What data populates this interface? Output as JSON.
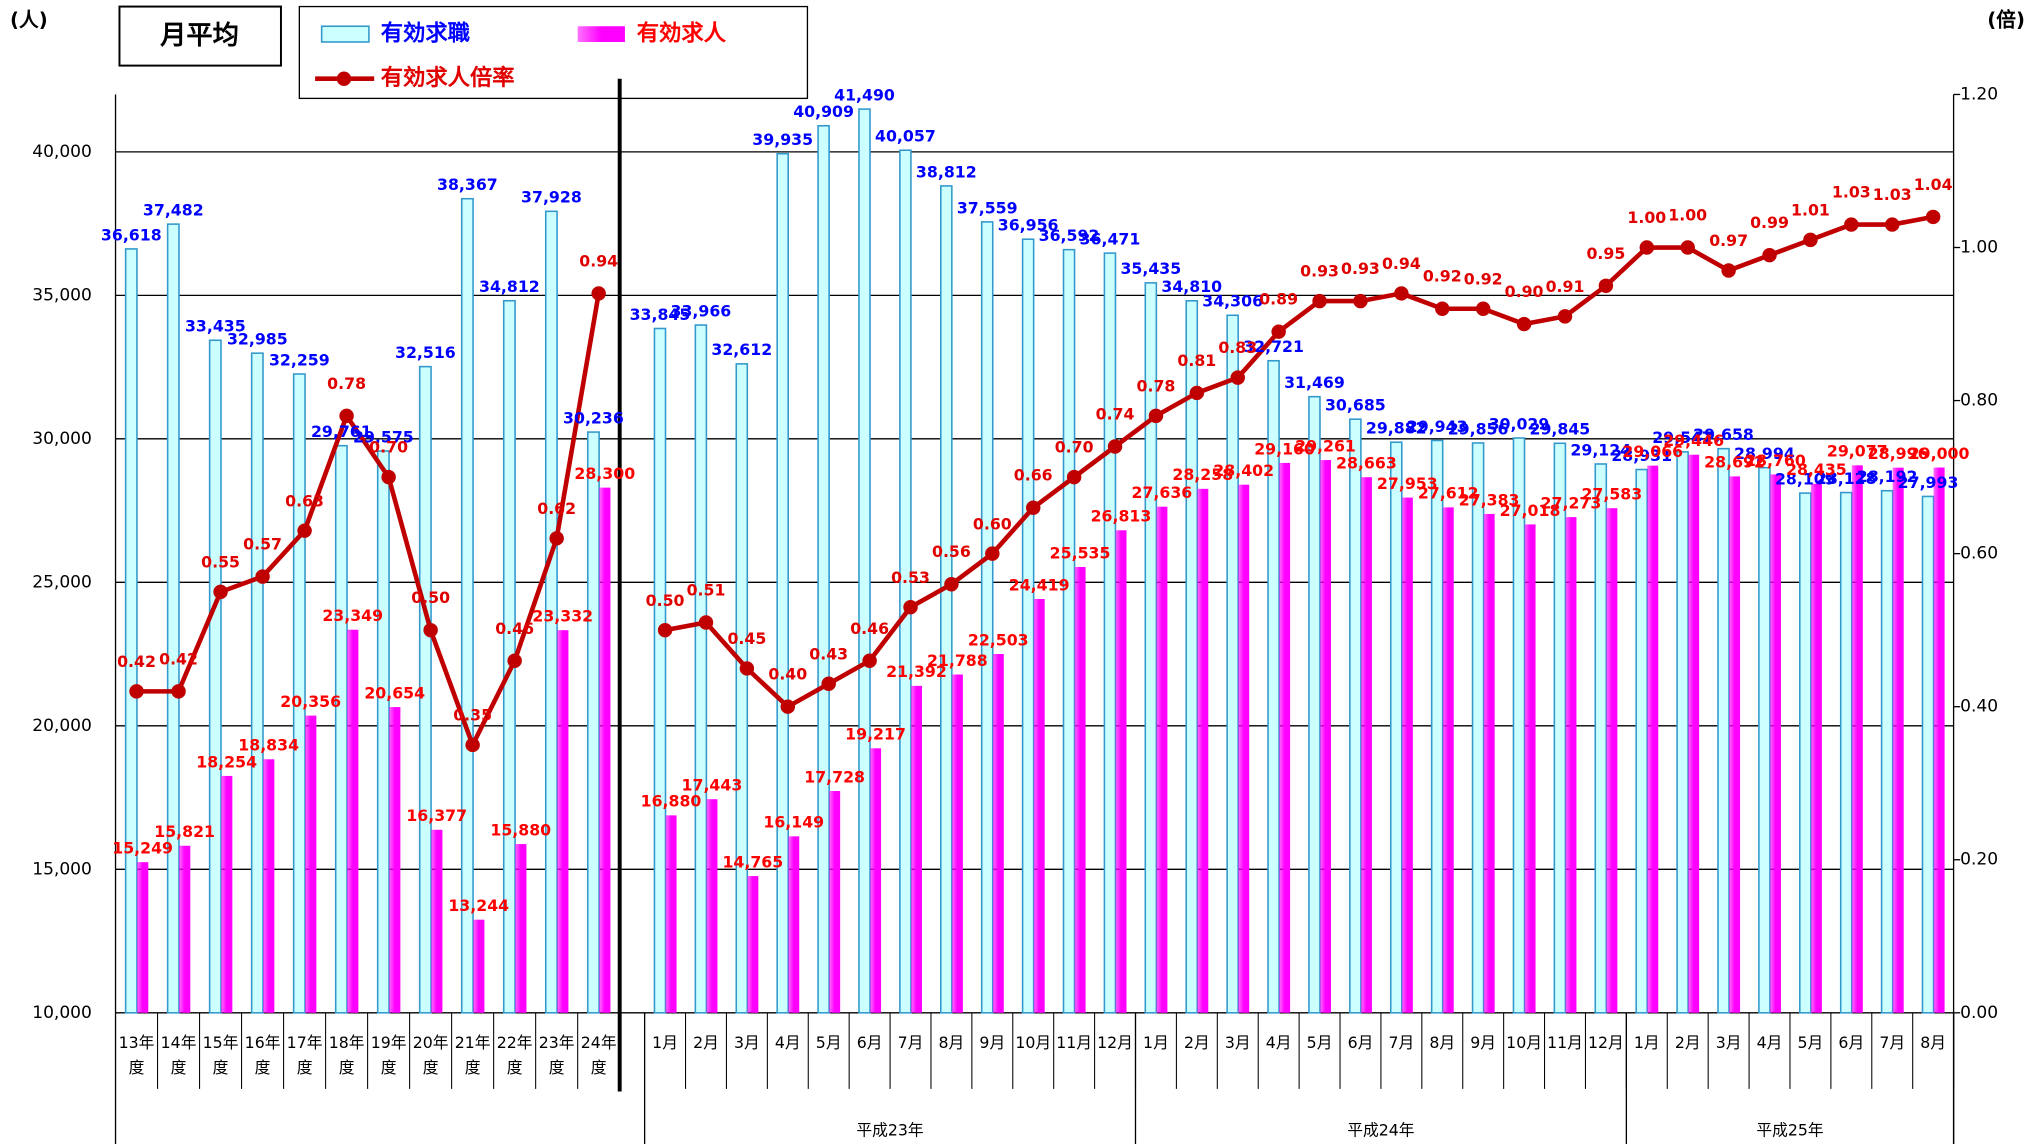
{
  "chart_data": {
    "type": "bar",
    "title": "月平均",
    "y_unit": "(人)",
    "y2_unit": "(倍)",
    "categories": [
      "13年度",
      "14年度",
      "15年度",
      "16年度",
      "17年度",
      "18年度",
      "19年度",
      "20年度",
      "21年度",
      "22年度",
      "23年度",
      "24年度",
      "1月",
      "2月",
      "3月",
      "4月",
      "5月",
      "6月",
      "7月",
      "8月",
      "9月",
      "10月",
      "11月",
      "12月",
      "1月",
      "2月",
      "3月",
      "4月",
      "5月",
      "6月",
      "7月",
      "8月",
      "9月",
      "10月",
      "11月",
      "12月",
      "1月",
      "2月",
      "3月",
      "4月",
      "5月",
      "6月",
      "7月",
      "8月"
    ],
    "group_labels": [
      "平成23年",
      "平成24年",
      "平成25年"
    ],
    "series": [
      {
        "name": "有効求職",
        "type": "bar",
        "color": "#ccffff",
        "label_color": "#0000ff",
        "values": [
          36618,
          37482,
          33435,
          32985,
          32259,
          29761,
          29575,
          32516,
          38367,
          34812,
          37928,
          30236,
          33845,
          33966,
          32612,
          39935,
          40909,
          41490,
          40057,
          38812,
          37559,
          36956,
          36592,
          36471,
          35435,
          34810,
          34306,
          32721,
          31469,
          30685,
          29882,
          29943,
          29856,
          30029,
          29845,
          29124,
          28931,
          29547,
          29658,
          28994,
          28109,
          28128,
          28192,
          27993
        ],
        "value_labels": [
          "36,618",
          "37,482",
          "33,435",
          "32,985",
          "32,259",
          "29,761",
          "29,575",
          "32,516",
          "38,367",
          "34,812",
          "37,928",
          "30,236",
          "33,845",
          "33,966",
          "32,612",
          "39,935",
          "40,909",
          "41,490",
          "40,057",
          "38,812",
          "37,559",
          "36,956",
          "36,592",
          "36,471",
          "35,435",
          "34,810",
          "34,306",
          "32,721",
          "31,469",
          "30,685",
          "29,882",
          "29,943",
          "29,856",
          "30,029",
          "29,845",
          "29,124",
          "28,931",
          "29,547",
          "29,658",
          "28,994",
          "28,109",
          "28,128",
          "28,192",
          "27,993"
        ]
      },
      {
        "name": "有効求人",
        "type": "bar",
        "color": "#ff00ff",
        "label_color": "#ff0000",
        "values": [
          15249,
          15821,
          18254,
          18834,
          20356,
          23349,
          20654,
          16377,
          13244,
          15880,
          23332,
          28300,
          16880,
          17443,
          14765,
          16149,
          17728,
          19217,
          21392,
          21788,
          22503,
          24419,
          25535,
          26813,
          27636,
          28258,
          28402,
          29160,
          29261,
          28663,
          27953,
          27612,
          27383,
          27018,
          27273,
          27583,
          29066,
          29446,
          28692,
          28760,
          28435,
          29077,
          28996,
          29000
        ],
        "value_labels": [
          "15,249",
          "15,821",
          "18,254",
          "18,834",
          "20,356",
          "23,349",
          "20,654",
          "16,377",
          "13,244",
          "15,880",
          "23,332",
          "28,300",
          "16,880",
          "17,443",
          "14,765",
          "16,149",
          "17,728",
          "19,217",
          "21,392",
          "21,788",
          "22,503",
          "24,419",
          "25,535",
          "26,813",
          "27,636",
          "28,258",
          "28,402",
          "29,160",
          "29,261",
          "28,663",
          "27,953",
          "27,612",
          "27,383",
          "27,018",
          "27,273",
          "27,583",
          "29,066",
          "29,446",
          "28,692",
          "28,760",
          "28,435",
          "29,077",
          "28,996",
          "29,000"
        ]
      },
      {
        "name": "有効求人倍率",
        "type": "line",
        "axis": "y2",
        "color": "#c00000",
        "label_color": "#e00000",
        "values": [
          0.42,
          0.42,
          0.55,
          0.57,
          0.63,
          0.78,
          0.7,
          0.5,
          0.35,
          0.46,
          0.62,
          0.94,
          0.5,
          0.51,
          0.45,
          0.4,
          0.43,
          0.46,
          0.53,
          0.56,
          0.6,
          0.66,
          0.7,
          0.74,
          0.78,
          0.81,
          0.83,
          0.89,
          0.93,
          0.93,
          0.94,
          0.92,
          0.92,
          0.9,
          0.91,
          0.95,
          1.0,
          1.0,
          0.97,
          0.99,
          1.01,
          1.03,
          1.03,
          1.04
        ],
        "value_labels": [
          "0.42",
          "0.42",
          "0.55",
          "0.57",
          "0.63",
          "0.78",
          "0.70",
          "0.50",
          "0.35",
          "0.46",
          "0.62",
          "0.94",
          "0.50",
          "0.51",
          "0.45",
          "0.40",
          "0.43",
          "0.46",
          "0.53",
          "0.56",
          "0.60",
          "0.66",
          "0.70",
          "0.74",
          "0.78",
          "0.81",
          "0.83",
          "0.89",
          "0.93",
          "0.93",
          "0.94",
          "0.92",
          "0.92",
          "0.90",
          "0.91",
          "0.95",
          "1.00",
          "1.00",
          "0.97",
          "0.99",
          "1.01",
          "1.03",
          "1.03",
          "1.04"
        ]
      }
    ],
    "ylim": [
      10000,
      42000
    ],
    "yticks": [
      {
        "value": 10000,
        "label": "10,000"
      },
      {
        "value": 15000,
        "label": "15,000"
      },
      {
        "value": 20000,
        "label": "20,000"
      },
      {
        "value": 25000,
        "label": "25,000"
      },
      {
        "value": 30000,
        "label": "30,000"
      },
      {
        "value": 35000,
        "label": "35,000"
      },
      {
        "value": 40000,
        "label": "40,000"
      }
    ],
    "y2lim": [
      0,
      1.2
    ],
    "y2ticks": [
      {
        "value": 0,
        "label": "0.00"
      },
      {
        "value": 0.2,
        "label": "0.20"
      },
      {
        "value": 0.4,
        "label": "0.40"
      },
      {
        "value": 0.6,
        "label": "0.60"
      },
      {
        "value": 0.8,
        "label": "0.80"
      },
      {
        "value": 1.0,
        "label": "1.00"
      },
      {
        "value": 1.2,
        "label": "1.20"
      }
    ],
    "grid": true
  }
}
